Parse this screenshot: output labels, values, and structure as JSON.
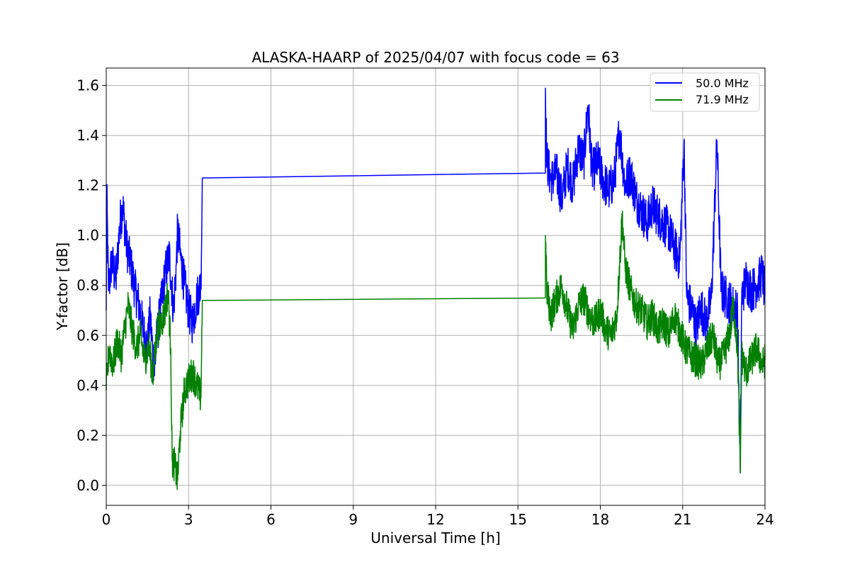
{
  "chart_data": {
    "type": "line",
    "title": "ALASKA-HAARP of 2025/04/07 with focus code = 63",
    "xlabel": "Universal Time [h]",
    "ylabel": "Y-factor [dB]",
    "xlim": [
      0,
      24
    ],
    "ylim": [
      -0.08,
      1.67
    ],
    "xticks": [
      0,
      3,
      6,
      9,
      12,
      15,
      18,
      21,
      24
    ],
    "xtick_labels": [
      "0",
      "3",
      "6",
      "9",
      "12",
      "15",
      "18",
      "21",
      "24"
    ],
    "yticks": [
      0.0,
      0.2,
      0.4,
      0.6,
      0.8,
      1.0,
      1.2,
      1.4,
      1.6
    ],
    "ytick_labels": [
      "0.0",
      "0.2",
      "0.4",
      "0.6",
      "0.8",
      "1.0",
      "1.2",
      "1.4",
      "1.6"
    ],
    "grid": true,
    "legend_position": "top-right",
    "series": [
      {
        "name": "50.0 MHz",
        "color": "#0000ff",
        "points": [
          [
            0.0,
            0.7
          ],
          [
            0.02,
            1.17
          ],
          [
            0.08,
            0.78
          ],
          [
            0.2,
            0.9
          ],
          [
            0.35,
            0.82
          ],
          [
            0.5,
            1.05
          ],
          [
            0.6,
            1.12
          ],
          [
            0.75,
            0.95
          ],
          [
            0.9,
            0.88
          ],
          [
            1.05,
            0.78
          ],
          [
            1.2,
            0.72
          ],
          [
            1.35,
            0.62
          ],
          [
            1.5,
            0.55
          ],
          [
            1.6,
            0.68
          ],
          [
            1.75,
            0.45
          ],
          [
            1.85,
            0.6
          ],
          [
            2.0,
            0.72
          ],
          [
            2.15,
            0.85
          ],
          [
            2.3,
            0.92
          ],
          [
            2.45,
            0.7
          ],
          [
            2.55,
            0.88
          ],
          [
            2.6,
            1.02
          ],
          [
            2.7,
            0.92
          ],
          [
            2.85,
            0.8
          ],
          [
            3.0,
            0.7
          ],
          [
            3.15,
            0.65
          ],
          [
            3.3,
            0.75
          ],
          [
            3.45,
            0.8
          ],
          [
            3.5,
            1.23
          ],
          [
            16.0,
            1.25
          ],
          [
            16.0,
            1.59
          ],
          [
            16.05,
            1.3
          ],
          [
            16.2,
            1.22
          ],
          [
            16.4,
            1.25
          ],
          [
            16.6,
            1.15
          ],
          [
            16.8,
            1.28
          ],
          [
            17.0,
            1.2
          ],
          [
            17.2,
            1.35
          ],
          [
            17.4,
            1.3
          ],
          [
            17.55,
            1.52
          ],
          [
            17.7,
            1.25
          ],
          [
            17.9,
            1.3
          ],
          [
            18.1,
            1.22
          ],
          [
            18.3,
            1.18
          ],
          [
            18.5,
            1.22
          ],
          [
            18.7,
            1.42
          ],
          [
            18.9,
            1.2
          ],
          [
            19.1,
            1.25
          ],
          [
            19.3,
            1.15
          ],
          [
            19.5,
            1.1
          ],
          [
            19.7,
            1.05
          ],
          [
            19.9,
            1.12
          ],
          [
            20.1,
            1.08
          ],
          [
            20.3,
            1.05
          ],
          [
            20.5,
            1.02
          ],
          [
            20.7,
            0.95
          ],
          [
            20.9,
            0.9
          ],
          [
            21.05,
            1.38
          ],
          [
            21.15,
            0.75
          ],
          [
            21.35,
            0.7
          ],
          [
            21.5,
            0.62
          ],
          [
            21.65,
            0.72
          ],
          [
            21.85,
            0.65
          ],
          [
            22.05,
            0.75
          ],
          [
            22.25,
            1.38
          ],
          [
            22.4,
            0.78
          ],
          [
            22.6,
            0.75
          ],
          [
            22.8,
            0.72
          ],
          [
            23.0,
            0.7
          ],
          [
            23.1,
            0.05
          ],
          [
            23.15,
            0.75
          ],
          [
            23.3,
            0.82
          ],
          [
            23.5,
            0.78
          ],
          [
            23.7,
            0.8
          ],
          [
            23.9,
            0.85
          ],
          [
            24.0,
            0.76
          ]
        ]
      },
      {
        "name": "71.9 MHz",
        "color": "#008000",
        "points": [
          [
            0.0,
            0.38
          ],
          [
            0.1,
            0.55
          ],
          [
            0.25,
            0.48
          ],
          [
            0.4,
            0.58
          ],
          [
            0.55,
            0.52
          ],
          [
            0.7,
            0.65
          ],
          [
            0.8,
            0.72
          ],
          [
            0.95,
            0.62
          ],
          [
            1.1,
            0.55
          ],
          [
            1.25,
            0.6
          ],
          [
            1.4,
            0.5
          ],
          [
            1.55,
            0.56
          ],
          [
            1.7,
            0.44
          ],
          [
            1.85,
            0.62
          ],
          [
            2.0,
            0.65
          ],
          [
            2.15,
            0.7
          ],
          [
            2.25,
            0.78
          ],
          [
            2.35,
            0.55
          ],
          [
            2.4,
            0.1
          ],
          [
            2.5,
            0.08
          ],
          [
            2.6,
            0.02
          ],
          [
            2.7,
            0.22
          ],
          [
            2.85,
            0.38
          ],
          [
            3.0,
            0.42
          ],
          [
            3.15,
            0.45
          ],
          [
            3.3,
            0.4
          ],
          [
            3.45,
            0.35
          ],
          [
            3.5,
            0.74
          ],
          [
            16.0,
            0.75
          ],
          [
            16.0,
            1.0
          ],
          [
            16.05,
            0.78
          ],
          [
            16.2,
            0.68
          ],
          [
            16.4,
            0.75
          ],
          [
            16.6,
            0.8
          ],
          [
            16.8,
            0.7
          ],
          [
            17.0,
            0.62
          ],
          [
            17.2,
            0.72
          ],
          [
            17.4,
            0.75
          ],
          [
            17.6,
            0.68
          ],
          [
            17.8,
            0.65
          ],
          [
            18.0,
            0.7
          ],
          [
            18.2,
            0.62
          ],
          [
            18.4,
            0.6
          ],
          [
            18.6,
            0.68
          ],
          [
            18.8,
            1.08
          ],
          [
            18.9,
            0.88
          ],
          [
            19.1,
            0.78
          ],
          [
            19.3,
            0.72
          ],
          [
            19.5,
            0.7
          ],
          [
            19.7,
            0.65
          ],
          [
            19.9,
            0.68
          ],
          [
            20.1,
            0.62
          ],
          [
            20.3,
            0.65
          ],
          [
            20.5,
            0.6
          ],
          [
            20.7,
            0.68
          ],
          [
            20.9,
            0.62
          ],
          [
            21.1,
            0.55
          ],
          [
            21.3,
            0.52
          ],
          [
            21.5,
            0.5
          ],
          [
            21.7,
            0.48
          ],
          [
            21.9,
            0.55
          ],
          [
            22.1,
            0.6
          ],
          [
            22.3,
            0.48
          ],
          [
            22.5,
            0.52
          ],
          [
            22.7,
            0.6
          ],
          [
            22.85,
            0.72
          ],
          [
            23.0,
            0.55
          ],
          [
            23.1,
            0.05
          ],
          [
            23.15,
            0.52
          ],
          [
            23.3,
            0.45
          ],
          [
            23.5,
            0.5
          ],
          [
            23.7,
            0.55
          ],
          [
            23.9,
            0.48
          ],
          [
            24.0,
            0.5
          ]
        ]
      }
    ]
  }
}
